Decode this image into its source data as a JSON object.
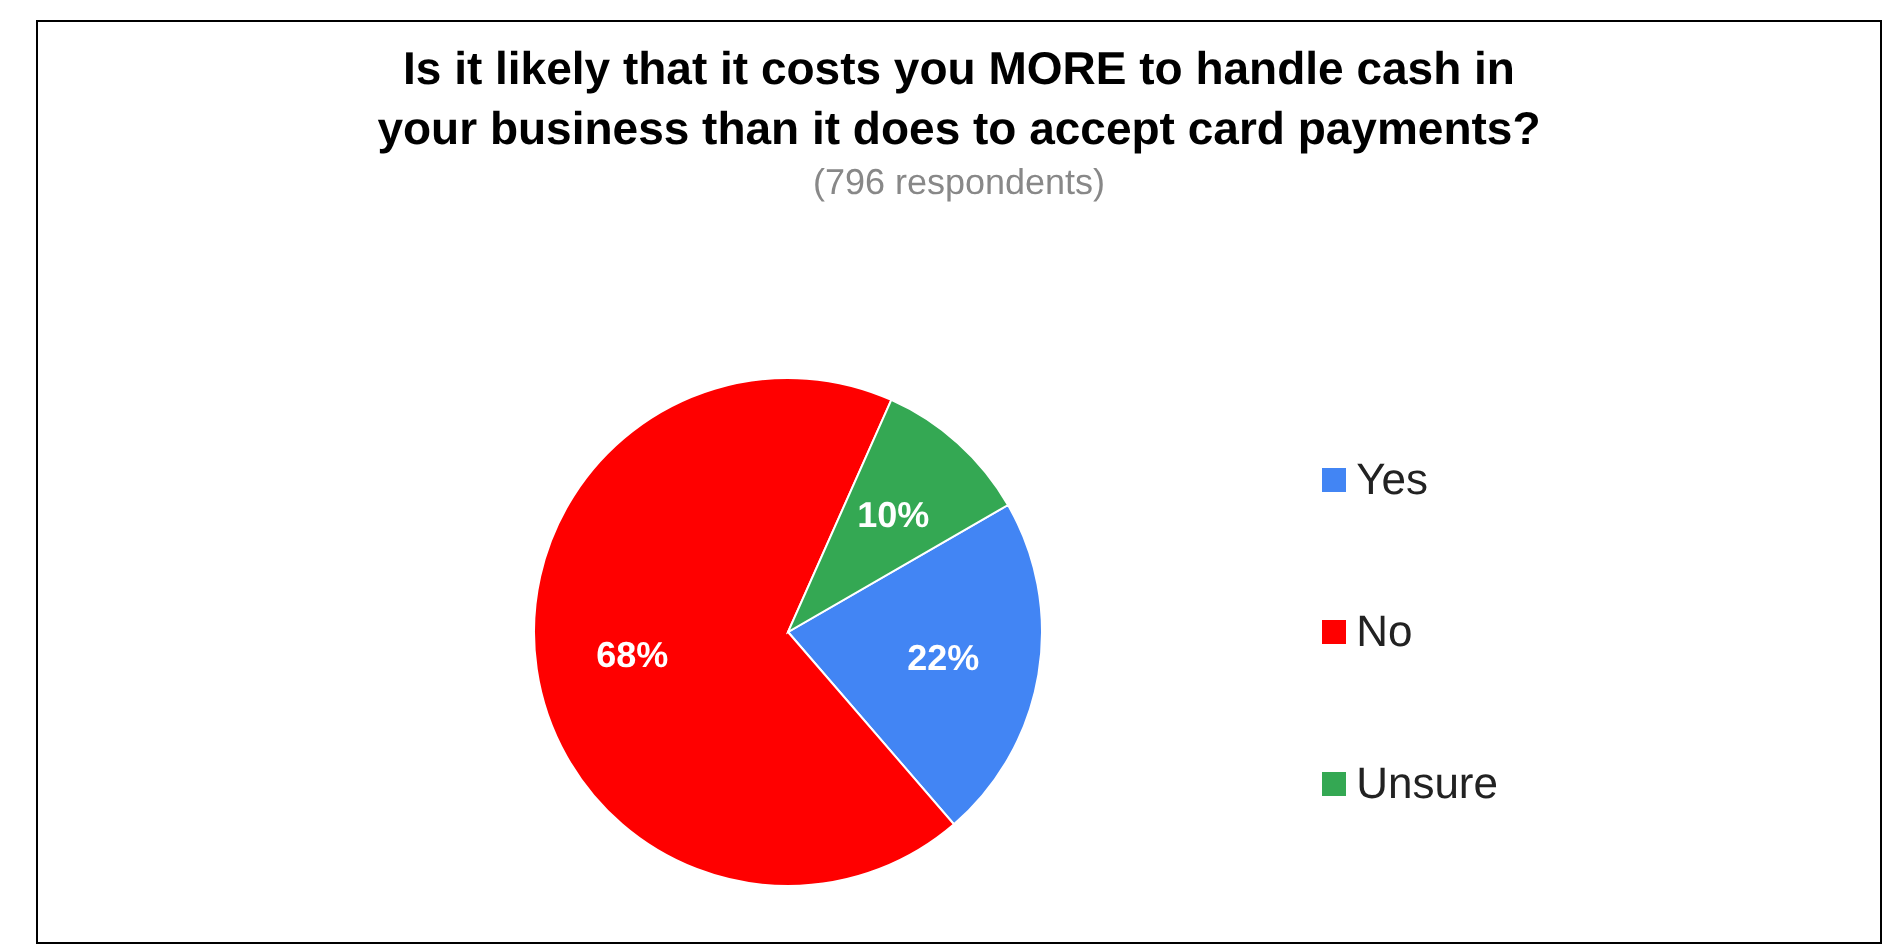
{
  "chart_data": {
    "type": "pie",
    "title": "Is it likely that it costs you MORE to handle cash in your business than it does to accept card payments?",
    "subtitle": "(796 respondents)",
    "categories": [
      "Yes",
      "No",
      "Unsure"
    ],
    "values": [
      22,
      68,
      10
    ],
    "value_labels": [
      "22%",
      "68%",
      "10%"
    ],
    "colors": [
      "#4285f4",
      "#ff0000",
      "#34a853"
    ],
    "legend": "right"
  }
}
